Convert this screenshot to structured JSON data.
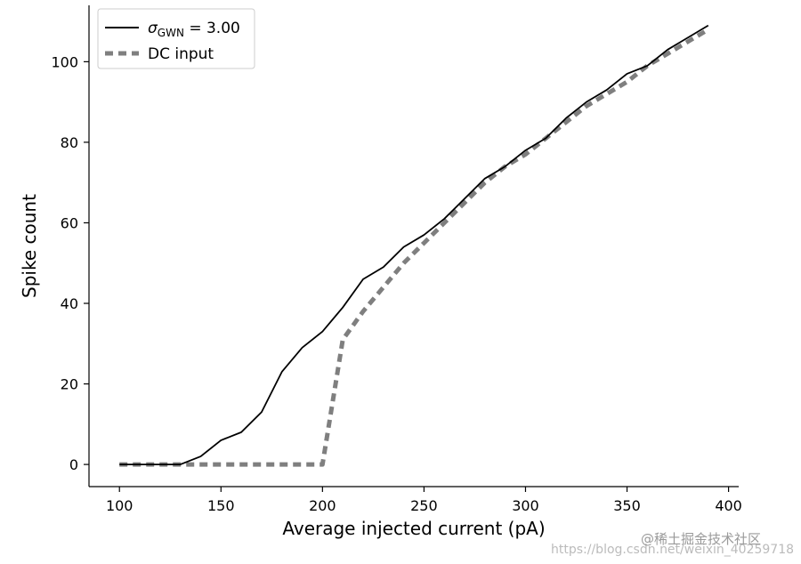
{
  "chart_data": {
    "type": "line",
    "title": "",
    "xlabel": "Average injected current (pA)",
    "ylabel": "Spike count",
    "xlim": [
      85,
      405
    ],
    "ylim": [
      -5.5,
      114
    ],
    "xticks": [
      100,
      150,
      200,
      250,
      300,
      350,
      400
    ],
    "yticks": [
      0,
      20,
      40,
      60,
      80,
      100
    ],
    "legend_position": "top-left",
    "series": [
      {
        "name": "σGWN = 3.00",
        "legend_symbol": "σ",
        "legend_subscript": "GWN",
        "legend_value": " = 3.00",
        "style": "solid",
        "color": "#000000",
        "x": [
          100,
          110,
          120,
          130,
          140,
          150,
          160,
          170,
          180,
          190,
          200,
          210,
          220,
          230,
          240,
          250,
          260,
          270,
          280,
          290,
          300,
          310,
          320,
          330,
          340,
          350,
          360,
          370,
          380,
          390
        ],
        "y": [
          0,
          0,
          0,
          0,
          2,
          6,
          8,
          13,
          23,
          29,
          33,
          39,
          46,
          49,
          54,
          57,
          61,
          66,
          71,
          74,
          78,
          81,
          86,
          90,
          93,
          97,
          99,
          103,
          106,
          109
        ]
      },
      {
        "name": "DC input",
        "style": "dashed",
        "color": "#7f7f7f",
        "x": [
          100,
          110,
          120,
          130,
          140,
          150,
          160,
          170,
          180,
          190,
          200,
          210,
          220,
          230,
          240,
          250,
          260,
          270,
          280,
          290,
          300,
          310,
          320,
          330,
          340,
          350,
          360,
          370,
          380,
          390
        ],
        "y": [
          0,
          0,
          0,
          0,
          0,
          0,
          0,
          0,
          0,
          0,
          0,
          31,
          38,
          44,
          50,
          55,
          60,
          65,
          70,
          74,
          77,
          81,
          85,
          89,
          92,
          95,
          99,
          102,
          105,
          108
        ]
      }
    ]
  },
  "watermark": {
    "url_text": "https://blog.csdn.net/weixin_40259718",
    "brand_text": "@稀土掘金技术社区"
  }
}
